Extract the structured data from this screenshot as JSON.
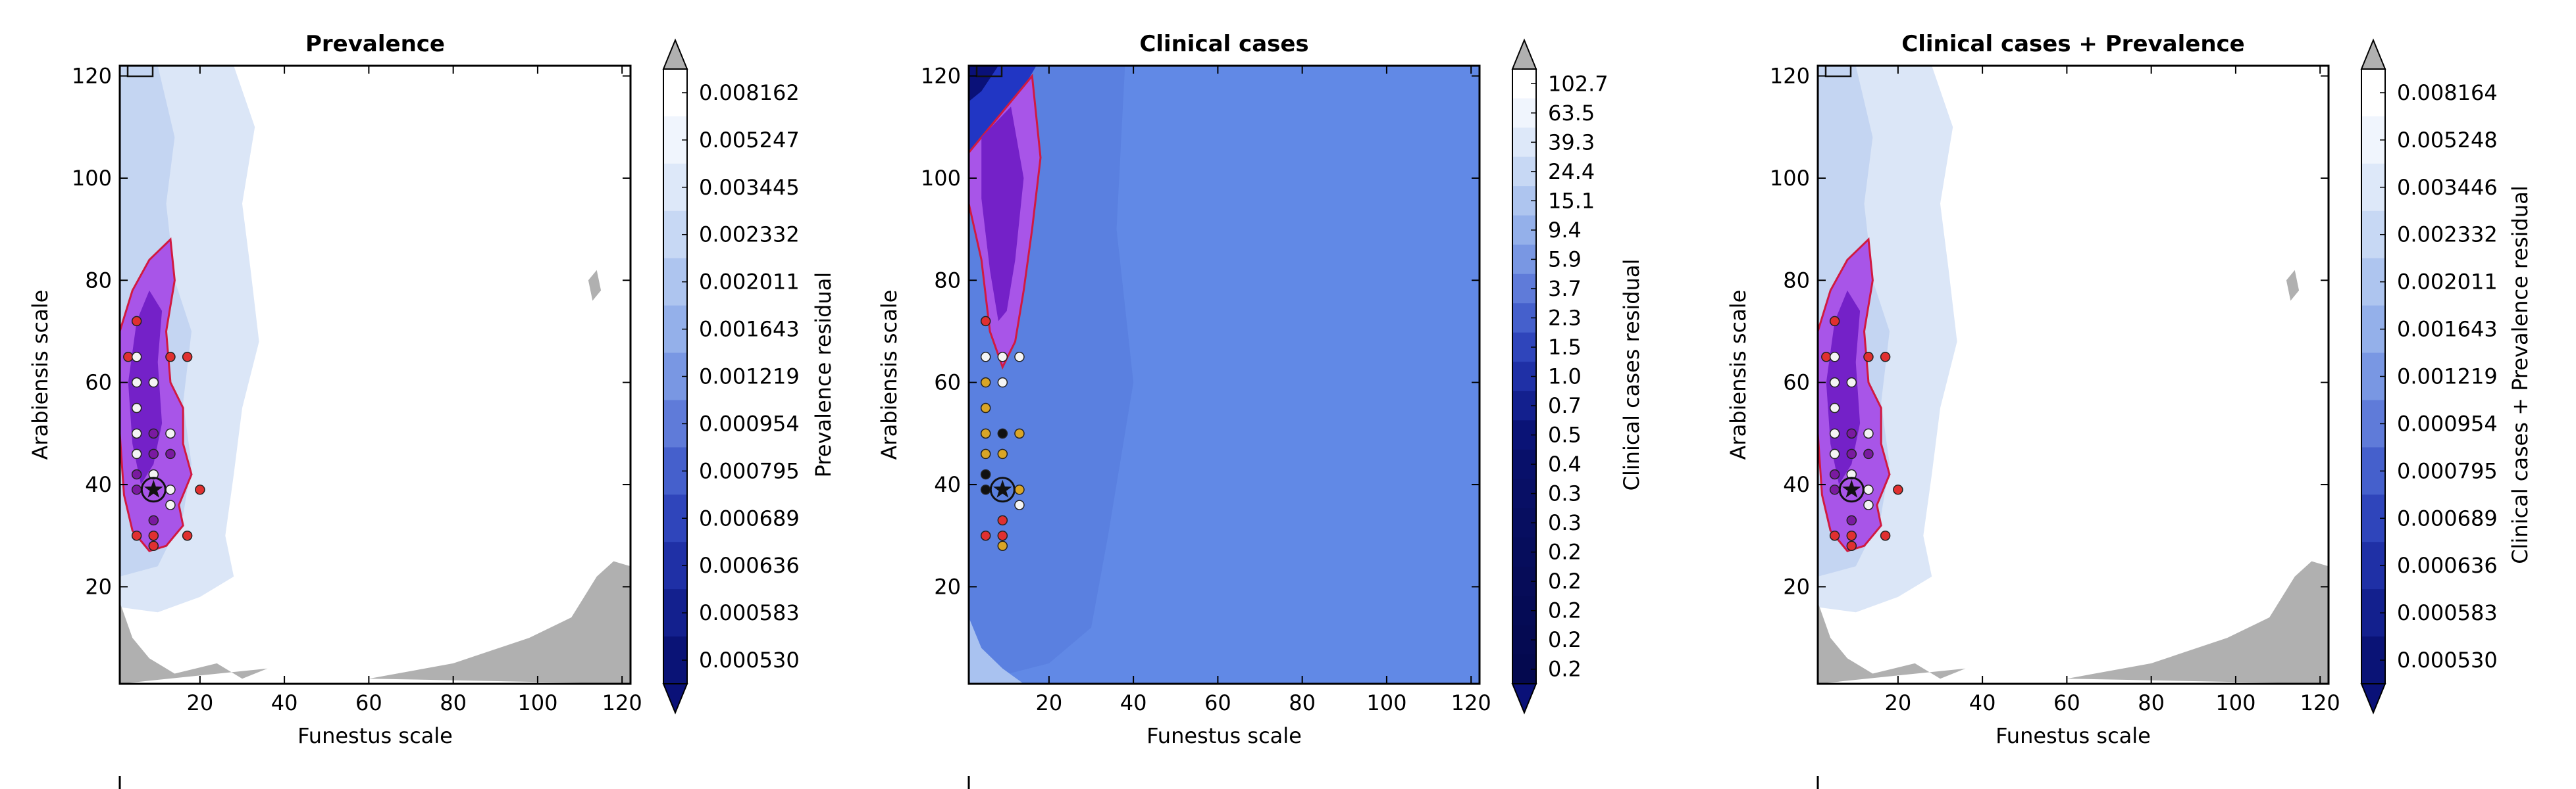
{
  "colors": {
    "white": "#ffffff",
    "light_blue": "#dbe6f7",
    "mid_blue": "#c4d5f2",
    "blue_high": "#6189e6",
    "blue_mid": "#5a80e0",
    "blue_deep": "#2136c4",
    "navy": "#0a1178",
    "gray": "#b0b0b0",
    "purple_fill": "#a855e8",
    "purple_deep": "#7421c8",
    "contour": "#d11a40",
    "point_red": "#e03030",
    "point_white": "#f4f4f4",
    "point_purple": "#7a1aa0",
    "point_yellow": "#d9a526",
    "point_black": "#111111"
  },
  "chart_data": [
    {
      "type": "contour",
      "title": "Prevalence",
      "xlabel": "Funestus scale",
      "ylabel": "Arabiensis scale",
      "xlim": [
        1,
        122
      ],
      "ylim": [
        1,
        122
      ],
      "xticks": [
        20,
        40,
        60,
        80,
        100,
        120
      ],
      "yticks": [
        20,
        40,
        60,
        80,
        100,
        120
      ],
      "colorbar": {
        "label": "Prevalence residual",
        "levels": [
          "0.008162",
          "0.005247",
          "0.003445",
          "0.002332",
          "0.002011",
          "0.001643",
          "0.001219",
          "0.000954",
          "0.000795",
          "0.000689",
          "0.000636",
          "0.000583",
          "0.000530"
        ]
      },
      "points": [
        [
          3,
          65,
          "red"
        ],
        [
          5,
          72,
          "red"
        ],
        [
          5,
          65,
          "white"
        ],
        [
          5,
          60,
          "white"
        ],
        [
          5,
          55,
          "white"
        ],
        [
          5,
          50,
          "white"
        ],
        [
          5,
          46,
          "white"
        ],
        [
          5,
          42,
          "purple"
        ],
        [
          5,
          39,
          "purple"
        ],
        [
          5,
          30,
          "red"
        ],
        [
          9,
          60,
          "white"
        ],
        [
          9,
          50,
          "purple"
        ],
        [
          9,
          46,
          "purple"
        ],
        [
          9,
          42,
          "white"
        ],
        [
          9,
          33,
          "purple"
        ],
        [
          9,
          30,
          "red"
        ],
        [
          9,
          28,
          "red"
        ],
        [
          13,
          65,
          "red"
        ],
        [
          13,
          50,
          "white"
        ],
        [
          13,
          46,
          "purple"
        ],
        [
          13,
          39,
          "white"
        ],
        [
          13,
          36,
          "white"
        ],
        [
          17,
          65,
          "red"
        ],
        [
          17,
          30,
          "red"
        ],
        [
          20,
          39,
          "red"
        ]
      ],
      "star": [
        9,
        39
      ]
    },
    {
      "type": "contour",
      "title": "Clinical cases",
      "xlabel": "Funestus scale",
      "ylabel": "Arabiensis scale",
      "xlim": [
        1,
        122
      ],
      "ylim": [
        1,
        122
      ],
      "xticks": [
        20,
        40,
        60,
        80,
        100,
        120
      ],
      "yticks": [
        20,
        40,
        60,
        80,
        100,
        120
      ],
      "colorbar": {
        "label": "Clinical cases residual",
        "levels": [
          "102.7",
          "63.5",
          "39.3",
          "24.4",
          "15.1",
          "9.4",
          "5.9",
          "3.7",
          "2.3",
          "1.5",
          "1.0",
          "0.7",
          "0.5",
          "0.4",
          "0.3",
          "0.3",
          "0.2",
          "0.2",
          "0.2",
          "0.2",
          "0.2"
        ]
      },
      "points": [
        [
          5,
          72,
          "red"
        ],
        [
          5,
          65,
          "white"
        ],
        [
          5,
          60,
          "yellow"
        ],
        [
          5,
          55,
          "yellow"
        ],
        [
          5,
          50,
          "yellow"
        ],
        [
          5,
          46,
          "yellow"
        ],
        [
          5,
          42,
          "black"
        ],
        [
          5,
          39,
          "black"
        ],
        [
          5,
          30,
          "red"
        ],
        [
          9,
          65,
          "white"
        ],
        [
          9,
          60,
          "white"
        ],
        [
          9,
          50,
          "black"
        ],
        [
          9,
          46,
          "yellow"
        ],
        [
          9,
          33,
          "red"
        ],
        [
          9,
          30,
          "red"
        ],
        [
          9,
          28,
          "yellow"
        ],
        [
          13,
          65,
          "white"
        ],
        [
          13,
          50,
          "yellow"
        ],
        [
          13,
          39,
          "yellow"
        ],
        [
          13,
          36,
          "white"
        ]
      ],
      "star": [
        9,
        39
      ]
    },
    {
      "type": "contour",
      "title": "Clinical cases + Prevalence",
      "xlabel": "Funestus scale",
      "ylabel": "Arabiensis scale",
      "xlim": [
        1,
        122
      ],
      "ylim": [
        1,
        122
      ],
      "xticks": [
        20,
        40,
        60,
        80,
        100,
        120
      ],
      "yticks": [
        20,
        40,
        60,
        80,
        100,
        120
      ],
      "colorbar": {
        "label": "Clinical cases + Prevalence residual",
        "levels": [
          "0.008164",
          "0.005248",
          "0.003446",
          "0.002332",
          "0.002011",
          "0.001643",
          "0.001219",
          "0.000954",
          "0.000795",
          "0.000689",
          "0.000636",
          "0.000583",
          "0.000530"
        ]
      },
      "points": [
        [
          3,
          65,
          "red"
        ],
        [
          5,
          72,
          "red"
        ],
        [
          5,
          65,
          "white"
        ],
        [
          5,
          60,
          "white"
        ],
        [
          5,
          55,
          "white"
        ],
        [
          5,
          50,
          "white"
        ],
        [
          5,
          46,
          "white"
        ],
        [
          5,
          42,
          "purple"
        ],
        [
          5,
          39,
          "purple"
        ],
        [
          5,
          30,
          "red"
        ],
        [
          9,
          60,
          "white"
        ],
        [
          9,
          50,
          "purple"
        ],
        [
          9,
          46,
          "purple"
        ],
        [
          9,
          42,
          "white"
        ],
        [
          9,
          33,
          "purple"
        ],
        [
          9,
          30,
          "red"
        ],
        [
          9,
          28,
          "red"
        ],
        [
          13,
          65,
          "red"
        ],
        [
          13,
          50,
          "white"
        ],
        [
          13,
          46,
          "purple"
        ],
        [
          13,
          39,
          "white"
        ],
        [
          13,
          36,
          "white"
        ],
        [
          17,
          65,
          "red"
        ],
        [
          17,
          30,
          "red"
        ],
        [
          20,
          39,
          "red"
        ]
      ],
      "star": [
        9,
        39
      ]
    }
  ]
}
